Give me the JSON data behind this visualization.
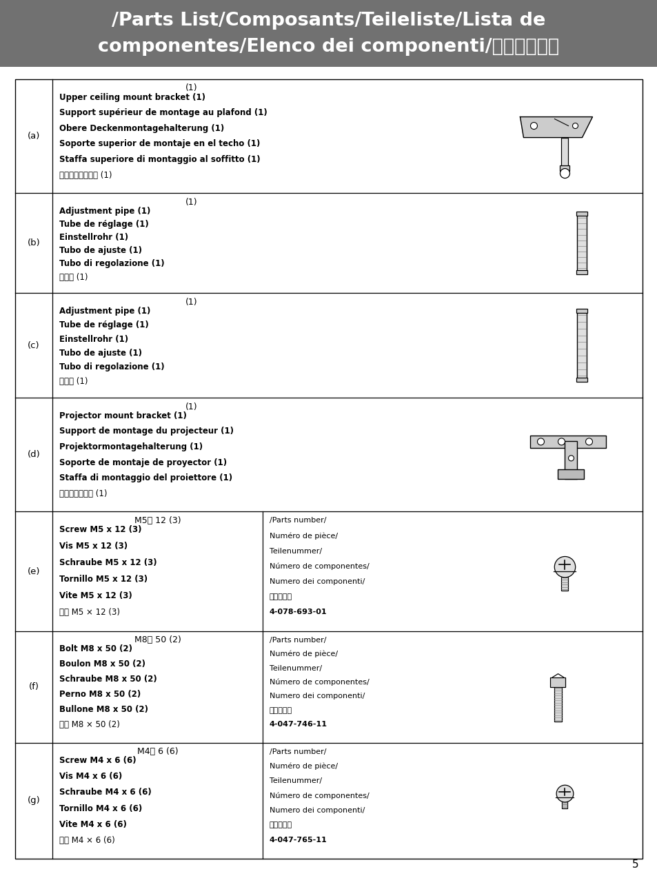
{
  "title_line1": "/Parts List/Composants/Teileliste/Lista de",
  "title_line2": "componentes/Elenco dei componenti/零部件一览表",
  "title_bg": "#717171",
  "title_color": "#ffffff",
  "page_bg": "#ffffff",
  "page_number": "5",
  "rows": [
    {
      "label": "(a)",
      "qty_line": "(1)",
      "bold_lines": [
        "Upper ceiling mount bracket (1)",
        "Support supérieur de montage au plafond (1)",
        "Obere Deckenmontagehalterung (1)",
        "Soporte superior de montaje en el techo (1)",
        "Staffa superiore di montaggio al soffitto (1)"
      ],
      "chinese_line": "上天花板安装支架 (1)",
      "has_parts": false,
      "parts_lines": [],
      "parts_code": ""
    },
    {
      "label": "(b)",
      "qty_line": "(1)",
      "bold_lines": [
        "Adjustment pipe (1)",
        "Tube de réglage (1)",
        "Einstellrohr (1)",
        "Tubo de ajuste (1)",
        "Tubo di regolazione (1)"
      ],
      "chinese_line": "调节管 (1)",
      "has_parts": false,
      "parts_lines": [],
      "parts_code": ""
    },
    {
      "label": "(c)",
      "qty_line": "(1)",
      "bold_lines": [
        "Adjustment pipe (1)",
        "Tube de réglage (1)",
        "Einstellrohr (1)",
        "Tubo de ajuste (1)",
        "Tubo di regolazione (1)"
      ],
      "chinese_line": "调节管 (1)",
      "has_parts": false,
      "parts_lines": [],
      "parts_code": ""
    },
    {
      "label": "(d)",
      "qty_line": "(1)",
      "bold_lines": [
        "Projector mount bracket (1)",
        "Support de montage du projecteur (1)",
        "Projektormontagehalterung (1)",
        "Soporte de montaje de proyector (1)",
        "Staffa di montaggio del proiettore (1)"
      ],
      "chinese_line": "投影仪安装支架 (1)",
      "has_parts": false,
      "parts_lines": [],
      "parts_code": ""
    },
    {
      "label": "(e)",
      "qty_line": "M5　 12 (3)",
      "bold_lines": [
        "Screw M5 x 12 (3)",
        "Vis M5 x 12 (3)",
        "Schraube M5 x 12 (3)",
        "Tornillo M5 x 12 (3)",
        "Vite M5 x 12 (3)"
      ],
      "chinese_line": "螺栀 M5 × 12 (3)",
      "has_parts": true,
      "parts_lines": [
        "/Parts number/",
        "Numéro de pièce/",
        "Teilenummer/",
        "Número de componentes/",
        "Numero dei componenti/",
        "零部件号码"
      ],
      "parts_code": "4-078-693-01"
    },
    {
      "label": "(f)",
      "qty_line": "M8　 50 (2)",
      "bold_lines": [
        "Bolt M8 x 50 (2)",
        "Boulon M8 x 50 (2)",
        "Schraube M8 x 50 (2)",
        "Perno M8 x 50 (2)",
        "Bullone M8 x 50 (2)"
      ],
      "chinese_line": "螺栀 M8 × 50 (2)",
      "has_parts": true,
      "parts_lines": [
        "/Parts number/",
        "Numéro de pièce/",
        "Teilenummer/",
        "Número de componentes/",
        "Numero dei componenti/",
        "零部件号码"
      ],
      "parts_code": "4-047-746-11"
    },
    {
      "label": "(g)",
      "qty_line": "M4　 6 (6)",
      "bold_lines": [
        "Screw M4 x 6 (6)",
        "Vis M4 x 6 (6)",
        "Schraube M4 x 6 (6)",
        "Tornillo M4 x 6 (6)",
        "Vite M4 x 6 (6)"
      ],
      "chinese_line": "螺栀 M4 × 6 (6)",
      "has_parts": true,
      "parts_lines": [
        "/Parts number/",
        "Numéro de pièce/",
        "Teilenummer/",
        "Número de componentes/",
        "Numero dei componenti/",
        "零部件号码"
      ],
      "parts_code": "4-047-765-11"
    }
  ]
}
